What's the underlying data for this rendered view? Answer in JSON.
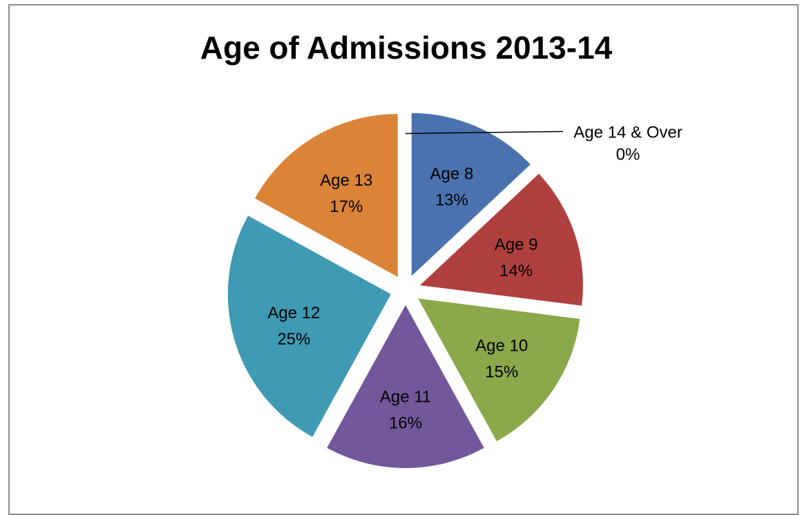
{
  "chart_data": {
    "type": "pie",
    "title": "Age of Admissions 2013-14",
    "legend": "none",
    "slices": [
      {
        "label": "Age 8",
        "value": 13,
        "percent_text": "13%",
        "color": "#4A72AE"
      },
      {
        "label": "Age 9",
        "value": 14,
        "percent_text": "14%",
        "color": "#B0403F"
      },
      {
        "label": "Age 10",
        "value": 15,
        "percent_text": "15%",
        "color": "#8BA84B"
      },
      {
        "label": "Age 11",
        "value": 16,
        "percent_text": "16%",
        "color": "#72589A"
      },
      {
        "label": "Age 12",
        "value": 25,
        "percent_text": "25%",
        "color": "#3F9AB3"
      },
      {
        "label": "Age 13",
        "value": 17,
        "percent_text": "17%",
        "color": "#DB8437"
      },
      {
        "label": "Age 14 & Over",
        "value": 0,
        "percent_text": "0%",
        "color": "#9DBB60"
      }
    ]
  }
}
